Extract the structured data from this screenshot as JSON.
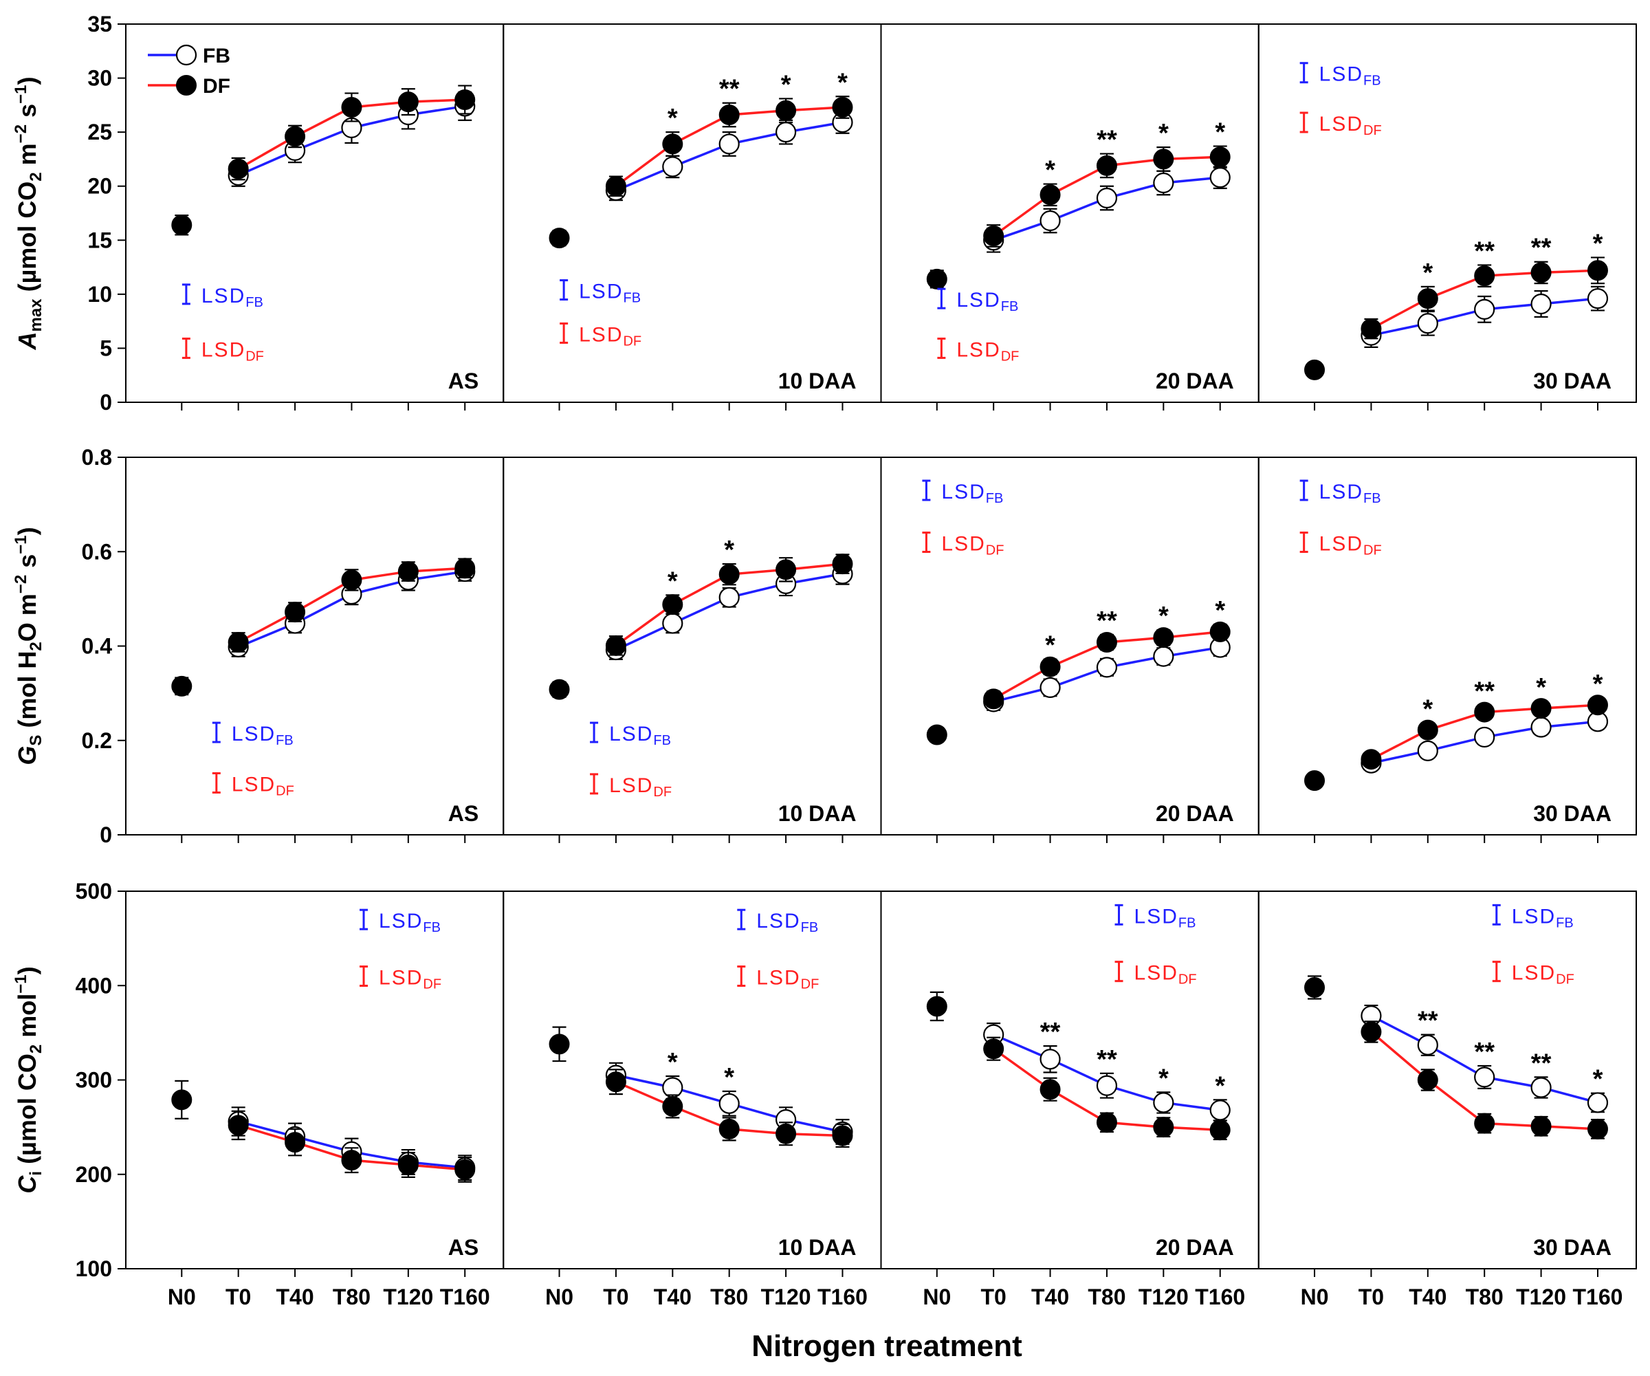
{
  "colors": {
    "fb": "#1f1fff",
    "df": "#ff1f1f",
    "axis": "#000000"
  },
  "xlabel": "Nitrogen treatment",
  "legend": {
    "fb": "FB",
    "df": "DF"
  },
  "lsd": {
    "prefix": "LSD",
    "fb_sub": "FB",
    "df_sub": "DF"
  },
  "chart_data": [
    {
      "type": "line",
      "row": "Amax",
      "ylabel": {
        "main": "A",
        "main_sub": "max",
        "a": " (µmol  CO",
        "a_sub": "2",
        "b": " m",
        "b_sup": "−2",
        "c": " s",
        "c_sup": "−1",
        "d": ")"
      },
      "ylim": [
        0,
        35
      ],
      "yticks": [
        0,
        5,
        10,
        15,
        20,
        25,
        30,
        35
      ],
      "yticklabels": [
        "0",
        "5",
        "10",
        "15",
        "20",
        "25",
        "30",
        "35"
      ],
      "categories": [
        "N0",
        "T0",
        "T40",
        "T80",
        "T120",
        "T160"
      ],
      "panels": [
        {
          "label": "AS",
          "n0": 16.4,
          "n0_err": 0.9,
          "fb": [
            21.0,
            23.3,
            25.4,
            26.6,
            27.4
          ],
          "fb_err": [
            1.0,
            1.1,
            1.4,
            1.3,
            1.3
          ],
          "df": [
            21.6,
            24.6,
            27.3,
            27.8,
            28.0
          ],
          "df_err": [
            1.0,
            1.0,
            1.3,
            1.2,
            1.3
          ],
          "stars": [
            "",
            "",
            "",
            "",
            ""
          ],
          "lsd": {
            "fb_val": 10.0,
            "df_val": 5.0
          }
        },
        {
          "label": "10 DAA",
          "n0": 15.2,
          "n0_err": 0.7,
          "fb": [
            19.6,
            21.8,
            23.9,
            25.0,
            25.9
          ],
          "fb_err": [
            0.9,
            1.0,
            1.1,
            1.1,
            1.0
          ],
          "df": [
            20.0,
            23.9,
            26.6,
            27.0,
            27.3
          ],
          "df_err": [
            0.9,
            1.1,
            1.1,
            1.1,
            1.0
          ],
          "stars": [
            "",
            "*",
            "**",
            "*",
            "*"
          ],
          "lsd": {
            "fb_val": 10.4,
            "df_val": 6.4
          }
        },
        {
          "label": "20 DAA",
          "n0": 11.4,
          "n0_err": 0.8,
          "fb": [
            15.0,
            16.8,
            18.9,
            20.3,
            20.8
          ],
          "fb_err": [
            1.1,
            1.1,
            1.1,
            1.1,
            1.0
          ],
          "df": [
            15.4,
            19.2,
            21.9,
            22.5,
            22.7
          ],
          "df_err": [
            1.0,
            1.0,
            1.1,
            1.1,
            1.0
          ],
          "stars": [
            "",
            "*",
            "**",
            "*",
            "*"
          ],
          "lsd": {
            "fb_val": 9.6,
            "df_val": 5.0
          }
        },
        {
          "label": "30 DAA",
          "n0": 3.0,
          "n0_err": 0.6,
          "fb": [
            6.2,
            7.3,
            8.6,
            9.1,
            9.6
          ],
          "fb_err": [
            1.1,
            1.1,
            1.2,
            1.2,
            1.1
          ],
          "df": [
            6.8,
            9.6,
            11.7,
            12.0,
            12.2
          ],
          "df_err": [
            0.9,
            1.1,
            1.0,
            1.0,
            1.2
          ],
          "stars": [
            "",
            "*",
            "**",
            "**",
            "*"
          ],
          "lsd": {
            "fb_val": 30.5,
            "df_val": 25.9
          }
        }
      ]
    },
    {
      "type": "line",
      "row": "Gs",
      "ylabel": {
        "main": "G",
        "main_sub": "S",
        "a": " (mol  H",
        "a_sub": "2",
        "b": "O m",
        "b_sup": "−2",
        "c": " s",
        "c_sup": "−1",
        "d": ")"
      },
      "ylim": [
        0,
        0.8
      ],
      "yticks": [
        0,
        0.2,
        0.4,
        0.6,
        0.8
      ],
      "yticklabels": [
        "0",
        "0.2",
        "0.4",
        "0.6",
        "0.8"
      ],
      "categories": [
        "N0",
        "T0",
        "T40",
        "T80",
        "T120",
        "T160"
      ],
      "panels": [
        {
          "label": "AS",
          "n0": 0.315,
          "n0_err": 0.018,
          "fb": [
            0.398,
            0.448,
            0.51,
            0.54,
            0.558
          ],
          "fb_err": [
            0.02,
            0.02,
            0.022,
            0.022,
            0.02
          ],
          "df": [
            0.408,
            0.472,
            0.54,
            0.558,
            0.565
          ],
          "df_err": [
            0.02,
            0.02,
            0.022,
            0.02,
            0.02
          ],
          "stars": [
            "",
            "",
            "",
            "",
            ""
          ],
          "lsd": {
            "fb_val": 0.217,
            "df_val": 0.11
          }
        },
        {
          "label": "10 DAA",
          "n0": 0.308,
          "n0_err": 0.016,
          "fb": [
            0.392,
            0.448,
            0.503,
            0.532,
            0.553
          ],
          "fb_err": [
            0.02,
            0.02,
            0.02,
            0.025,
            0.022
          ],
          "df": [
            0.401,
            0.488,
            0.552,
            0.562,
            0.574
          ],
          "df_err": [
            0.02,
            0.02,
            0.022,
            0.025,
            0.02
          ],
          "stars": [
            "",
            "*",
            "*",
            "",
            ""
          ],
          "lsd": {
            "fb_val": 0.217,
            "df_val": 0.108
          }
        },
        {
          "label": "20 DAA",
          "n0": 0.212,
          "n0_err": 0.015,
          "fb": [
            0.282,
            0.312,
            0.355,
            0.378,
            0.397
          ],
          "fb_err": [
            0.018,
            0.018,
            0.018,
            0.018,
            0.018
          ],
          "df": [
            0.288,
            0.356,
            0.408,
            0.418,
            0.43
          ],
          "df_err": [
            0.016,
            0.016,
            0.016,
            0.016,
            0.016
          ],
          "stars": [
            "",
            "*",
            "**",
            "*",
            "*"
          ],
          "lsd": {
            "fb_val": 0.73,
            "df_val": 0.62
          }
        },
        {
          "label": "30 DAA",
          "n0": 0.115,
          "n0_err": 0.015,
          "fb": [
            0.152,
            0.178,
            0.207,
            0.228,
            0.24
          ],
          "fb_err": [
            0.014,
            0.015,
            0.015,
            0.015,
            0.015
          ],
          "df": [
            0.16,
            0.222,
            0.26,
            0.268,
            0.275
          ],
          "df_err": [
            0.014,
            0.015,
            0.015,
            0.015,
            0.015
          ],
          "stars": [
            "",
            "*",
            "**",
            "*",
            "*"
          ],
          "lsd": {
            "fb_val": 0.73,
            "df_val": 0.62
          }
        }
      ]
    },
    {
      "type": "line",
      "row": "Ci",
      "ylabel": {
        "main": "C",
        "main_sub": "i",
        "a": " (µmol  CO",
        "a_sub": "2",
        "b": " mol",
        "b_sup": "−1",
        "c": "",
        "c_sup": "",
        "d": ")"
      },
      "ylim": [
        100,
        500
      ],
      "yticks": [
        100,
        200,
        300,
        400,
        500
      ],
      "yticklabels": [
        "100",
        "200",
        "300",
        "400",
        "500"
      ],
      "categories": [
        "N0",
        "T0",
        "T40",
        "T80",
        "T120",
        "T160"
      ],
      "panels": [
        {
          "label": "AS",
          "n0": 279,
          "n0_err": 20,
          "fb": [
            256,
            240,
            224,
            213,
            207
          ],
          "fb_err": [
            15,
            14,
            14,
            13,
            13
          ],
          "df": [
            252,
            234,
            215,
            210,
            205
          ],
          "df_err": [
            15,
            14,
            13,
            13,
            13
          ],
          "stars": [
            "",
            "",
            "",
            "",
            ""
          ],
          "lsd": {
            "fb_val": 470,
            "df_val": 410
          }
        },
        {
          "label": "10 DAA",
          "n0": 338,
          "n0_err": 18,
          "fb": [
            305,
            292,
            275,
            258,
            245
          ],
          "fb_err": [
            13,
            12,
            13,
            13,
            13
          ],
          "df": [
            298,
            272,
            248,
            243,
            241
          ],
          "df_err": [
            13,
            12,
            12,
            12,
            12
          ],
          "stars": [
            "",
            "*",
            "*",
            "",
            ""
          ],
          "lsd": {
            "fb_val": 470,
            "df_val": 410
          }
        },
        {
          "label": "20 DAA",
          "n0": 378,
          "n0_err": 15,
          "fb": [
            348,
            322,
            294,
            276,
            268
          ],
          "fb_err": [
            12,
            14,
            13,
            11,
            11
          ],
          "df": [
            333,
            290,
            255,
            250,
            247
          ],
          "df_err": [
            12,
            12,
            10,
            10,
            10
          ],
          "stars": [
            "",
            "**",
            "**",
            "*",
            "*"
          ],
          "lsd": {
            "fb_val": 475,
            "df_val": 415
          }
        },
        {
          "label": "30 DAA",
          "n0": 398,
          "n0_err": 12,
          "fb": [
            368,
            337,
            303,
            292,
            276
          ],
          "fb_err": [
            11,
            11,
            12,
            11,
            10
          ],
          "df": [
            351,
            300,
            254,
            251,
            248
          ],
          "df_err": [
            11,
            11,
            10,
            10,
            10
          ],
          "stars": [
            "",
            "**",
            "**",
            "**",
            "*"
          ],
          "lsd": {
            "fb_val": 475,
            "df_val": 415
          }
        }
      ]
    }
  ]
}
